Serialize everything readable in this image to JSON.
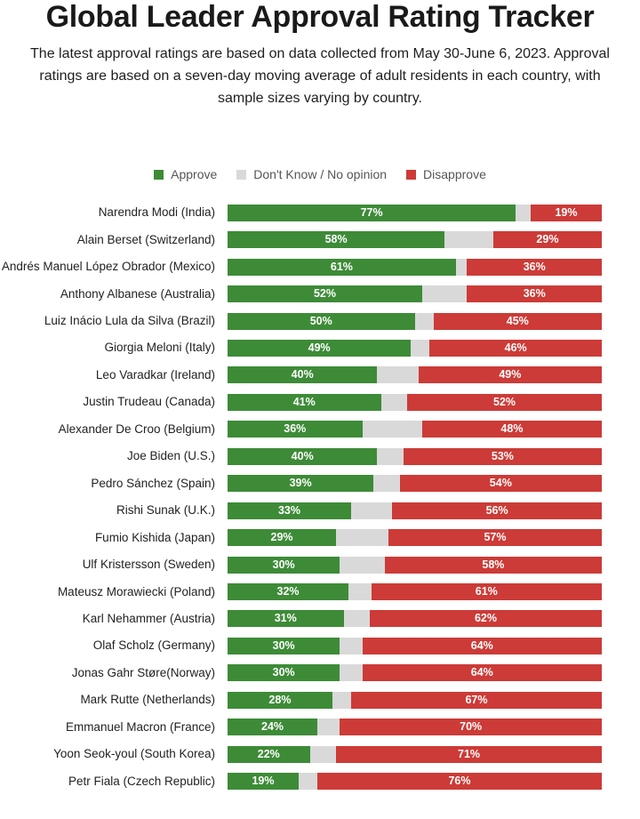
{
  "header": {
    "title": "Global Leader Approval Rating Tracker",
    "subtitle": "The latest approval ratings are based on data collected from May 30-June 6, 2023. Approval ratings are based on a seven-day moving average of adult residents in each country, with sample sizes varying by country."
  },
  "legend": {
    "approve": "Approve",
    "dont_know": "Don't Know / No opinion",
    "disapprove": "Disapprove"
  },
  "colors": {
    "approve": "#3d8b37",
    "dont_know": "#d9d9d9",
    "disapprove": "#cc3b37"
  },
  "chart_data": {
    "type": "bar",
    "orientation": "horizontal-stacked",
    "legend_position": "top",
    "categories": [
      "Narendra Modi (India)",
      "Alain Berset (Switzerland)",
      "Andrés Manuel López Obrador (Mexico)",
      "Anthony Albanese (Australia)",
      "Luiz Inácio Lula da Silva (Brazil)",
      "Giorgia Meloni (Italy)",
      "Leo Varadkar (Ireland)",
      "Justin Trudeau (Canada)",
      "Alexander De Croo (Belgium)",
      "Joe Biden (U.S.)",
      "Pedro Sánchez (Spain)",
      "Rishi Sunak (U.K.)",
      "Fumio Kishida (Japan)",
      "Ulf Kristersson (Sweden)",
      "Mateusz Morawiecki (Poland)",
      "Karl Nehammer (Austria)",
      "Olaf Scholz (Germany)",
      "Jonas Gahr Støre(Norway)",
      "Mark Rutte (Netherlands)",
      "Emmanuel Macron (France)",
      "Yoon Seok-youl (South Korea)",
      "Petr Fiala (Czech Republic)"
    ],
    "series": [
      {
        "name": "Approve",
        "values": [
          77,
          58,
          61,
          52,
          50,
          49,
          40,
          41,
          36,
          40,
          39,
          33,
          29,
          30,
          32,
          31,
          30,
          30,
          28,
          24,
          22,
          19
        ]
      },
      {
        "name": "Don't Know / No opinion",
        "values": [
          4,
          13,
          3,
          12,
          5,
          5,
          11,
          7,
          16,
          7,
          7,
          11,
          14,
          12,
          6,
          7,
          6,
          6,
          5,
          6,
          7,
          5
        ]
      },
      {
        "name": "Disapprove",
        "values": [
          19,
          29,
          36,
          36,
          45,
          46,
          49,
          52,
          48,
          53,
          54,
          56,
          57,
          58,
          61,
          62,
          64,
          64,
          67,
          70,
          71,
          76
        ]
      }
    ],
    "xlim": [
      0,
      100
    ],
    "unit": "%"
  }
}
